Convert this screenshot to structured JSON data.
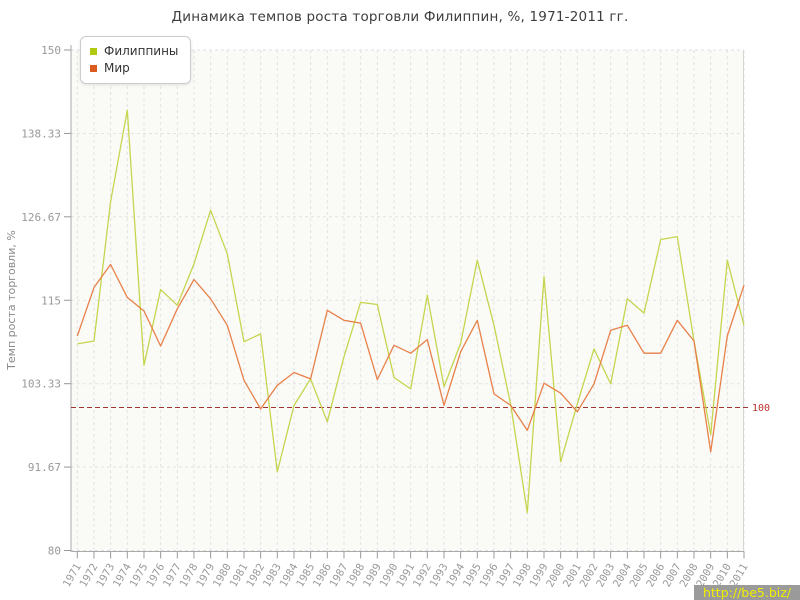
{
  "watermark": {
    "text": "http://be5.biz/",
    "text_color": "#f0ef00",
    "bar_color": "#9a9a9a"
  },
  "chart_data": {
    "type": "line",
    "title": "Динамика темпов роста торговли Филиппин, %, 1971-2011 гг.",
    "xlabel": "",
    "ylabel": "Темп роста торговли, %",
    "ylim": [
      80,
      150
    ],
    "grid": true,
    "legend_position": "top-left",
    "y_ticks": [
      "150",
      "138.33",
      "126.67",
      "115",
      "103.33",
      "91.67",
      "80"
    ],
    "y_tick_values": [
      150,
      138.33,
      126.67,
      115,
      103.33,
      91.67,
      80
    ],
    "reference_line": {
      "value": 100,
      "label": "100",
      "line_color": "#a03434",
      "label_color": "#b83232"
    },
    "x": [
      1971,
      1972,
      1973,
      1974,
      1975,
      1976,
      1977,
      1978,
      1979,
      1980,
      1981,
      1982,
      1983,
      1984,
      1985,
      1986,
      1987,
      1988,
      1989,
      1990,
      1991,
      1992,
      1993,
      1994,
      1995,
      1996,
      1997,
      1998,
      1999,
      2000,
      2001,
      2002,
      2003,
      2004,
      2005,
      2006,
      2007,
      2008,
      2009,
      2010,
      2011
    ],
    "series": [
      {
        "name": "Филиппины",
        "line_color": "#c6d54e",
        "swatch_color": "#b1ca10",
        "values": [
          108.9,
          109.3,
          128.8,
          141.6,
          105.9,
          116.5,
          114.3,
          120.1,
          127.6,
          121.5,
          109.2,
          110.3,
          91.0,
          100.3,
          104.0,
          98.0,
          107.1,
          114.7,
          114.4,
          104.2,
          102.6,
          115.7,
          102.9,
          109.0,
          120.6,
          111.5,
          100.4,
          85.3,
          118.3,
          92.4,
          100.5,
          108.2,
          103.3,
          115.2,
          113.2,
          123.5,
          123.9,
          109.3,
          96.2,
          120.6,
          111.5
        ]
      },
      {
        "name": "Мир",
        "line_color": "#e8814a",
        "swatch_color": "#dc5c20",
        "values": [
          110.0,
          116.8,
          120.0,
          115.4,
          113.5,
          108.6,
          113.8,
          117.9,
          115.2,
          111.5,
          103.8,
          99.8,
          103.1,
          104.9,
          104.0,
          113.6,
          112.2,
          111.8,
          103.9,
          108.7,
          107.6,
          109.5,
          100.3,
          107.8,
          112.2,
          101.9,
          100.3,
          96.8,
          103.4,
          102.0,
          99.4,
          103.3,
          110.8,
          111.5,
          107.6,
          107.6,
          112.2,
          109.3,
          93.8,
          110.0,
          117.1
        ]
      }
    ]
  }
}
